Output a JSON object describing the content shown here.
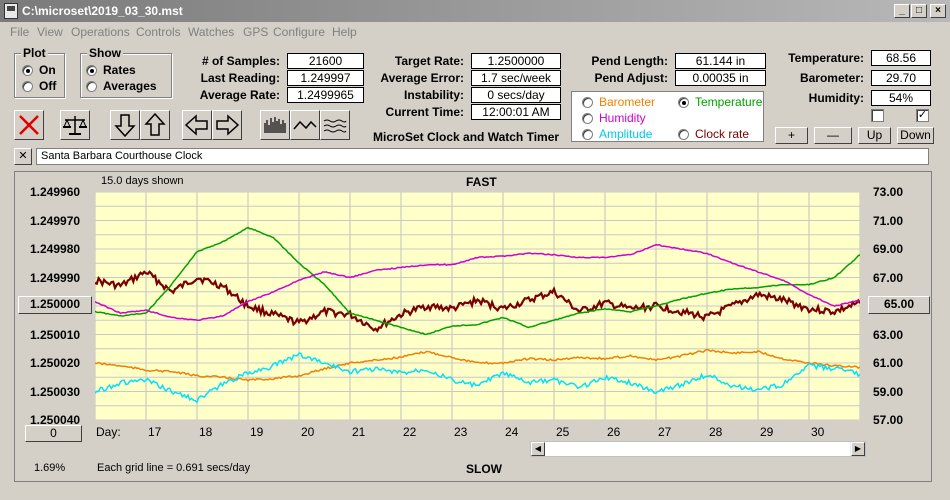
{
  "window": {
    "title": "C:\\microset\\2019_03_30.mst"
  },
  "menu": [
    "File",
    "View",
    "Operations",
    "Controls",
    "Watches",
    "GPS",
    "Configure",
    "Help"
  ],
  "plot": {
    "label": "Plot",
    "on": "On",
    "off": "Off",
    "selected": "On"
  },
  "show": {
    "label": "Show",
    "rates": "Rates",
    "averages": "Averages",
    "selected": "Rates"
  },
  "stats": {
    "samples_label": "# of Samples:",
    "samples": "21600",
    "last_label": "Last Reading:",
    "last": "1.249997",
    "avg_rate_label": "Average Rate:",
    "avg_rate": "1.2499965"
  },
  "timer": {
    "target_label": "Target Rate:",
    "target": "1.2500000",
    "avg_err_label": "Average Error:",
    "avg_err": "1.7 sec/week",
    "instab_label": "Instability:",
    "instab": "0 secs/day",
    "time_label": "Current Time:",
    "time": "12:00:01 AM",
    "caption": "MicroSet Clock and Watch Timer"
  },
  "pend": {
    "length_label": "Pend Length:",
    "length": "61.144 in",
    "adjust_label": "Pend Adjust:",
    "adjust": "0.00035 in"
  },
  "sensor_select": {
    "barometer": "Barometer",
    "temperature": "Temperature",
    "humidity": "Humidity",
    "amplitude": "Amplitude",
    "clock_rate": "Clock rate",
    "selected": "Temperature"
  },
  "env": {
    "temp_label": "Temperature:",
    "temp": "68.56",
    "baro_label": "Barometer:",
    "baro": "29.70",
    "hum_label": "Humidity:",
    "hum": "54%"
  },
  "env_buttons": {
    "plus": "+",
    "minus": "—",
    "up": "Up",
    "down": "Down"
  },
  "clock_name": "Santa Barbara Courthouse Clock",
  "chart_data": {
    "type": "line",
    "days_shown": "15.0 days shown",
    "top_label": "FAST",
    "bottom_label": "SLOW",
    "grid_note": "Each grid line = 0.691 secs/day",
    "left_ticks": [
      "1.249960",
      "1.249970",
      "1.249980",
      "1.249990",
      "1.250000",
      "1.250010",
      "1.250020",
      "1.250030",
      "1.250040"
    ],
    "center_value": "1.250000",
    "right_ticks": [
      "73.00",
      "71.00",
      "69.00",
      "67.00",
      "65.00",
      "63.00",
      "61.00",
      "59.00",
      "57.00"
    ],
    "right_center": "65.00",
    "x_label": "Day:",
    "x_ticks": [
      "17",
      "18",
      "19",
      "20",
      "21",
      "22",
      "23",
      "24",
      "25",
      "26",
      "27",
      "28",
      "29",
      "30"
    ],
    "x_range": [
      16,
      31
    ],
    "left_range": [
      1.24996,
      1.25004
    ],
    "right_range": [
      57,
      73
    ],
    "offset_button": "0",
    "percent": "1.69%",
    "series": [
      {
        "name": "Clock rate",
        "color": "#7a0000",
        "axis": "left",
        "x": [
          16,
          16.5,
          17,
          17.5,
          18,
          18.5,
          19,
          19.5,
          20,
          20.5,
          21,
          21.5,
          22,
          22.5,
          23,
          23.5,
          24,
          24.5,
          25,
          25.5,
          26,
          26.5,
          27,
          27.5,
          28,
          28.5,
          29,
          29.5,
          30,
          30.5,
          31
        ],
        "y": [
          1.249991,
          1.249993,
          1.249988,
          1.249995,
          1.24999,
          1.249993,
          1.25,
          1.250003,
          1.250006,
          1.250002,
          1.250003,
          1.250008,
          1.250003,
          1.25,
          1.250001,
          1.249998,
          1.250001,
          1.249998,
          1.249995,
          1.250002,
          1.249999,
          1.250001,
          1.25,
          1.250002,
          1.250004,
          1.25,
          1.249996,
          1.249998,
          1.250001,
          1.250002,
          1.249999
        ]
      },
      {
        "name": "Temperature",
        "color": "#00a000",
        "axis": "right",
        "x": [
          16,
          16.5,
          17,
          17.5,
          18,
          18.5,
          19,
          19.5,
          20,
          20.5,
          21,
          21.5,
          22,
          22.5,
          23,
          23.5,
          24,
          24.5,
          25,
          25.5,
          26,
          26.5,
          27,
          27.5,
          28,
          28.5,
          29,
          29.5,
          30,
          30.5,
          31
        ],
        "y": [
          64.6,
          64.3,
          64.5,
          66.5,
          68.8,
          69.5,
          70.5,
          69.8,
          68.0,
          66.5,
          64.5,
          64.0,
          63.5,
          63.0,
          63.6,
          63.7,
          64.2,
          63.5,
          64.0,
          64.5,
          64.8,
          64.6,
          65.0,
          65.5,
          65.9,
          66.2,
          66.3,
          66.5,
          66.5,
          67.0,
          68.6
        ]
      },
      {
        "name": "Humidity",
        "color": "#d000d0",
        "axis": "right",
        "x": [
          16,
          16.5,
          17,
          17.5,
          18,
          18.5,
          19,
          19.5,
          20,
          20.5,
          21,
          21.5,
          22,
          22.5,
          23,
          23.5,
          24,
          24.5,
          25,
          25.5,
          26,
          26.5,
          27,
          27.5,
          28,
          28.5,
          29,
          29.5,
          30,
          30.5,
          31
        ],
        "y": [
          65.3,
          64.5,
          64.7,
          64.2,
          64.0,
          64.3,
          65.3,
          66.0,
          66.8,
          67.4,
          67.0,
          67.5,
          67.7,
          67.9,
          67.9,
          68.4,
          68.5,
          68.7,
          68.6,
          68.4,
          68.4,
          68.6,
          69.3,
          69.0,
          68.7,
          68.0,
          67.4,
          66.8,
          65.8,
          65.0,
          65.4
        ]
      },
      {
        "name": "Barometer",
        "color": "#f08000",
        "axis": "right",
        "x": [
          16,
          16.5,
          17,
          17.5,
          18,
          18.5,
          19,
          19.5,
          20,
          20.5,
          21,
          21.5,
          22,
          22.5,
          23,
          23.5,
          24,
          24.5,
          25,
          25.5,
          26,
          26.5,
          27,
          27.5,
          28,
          28.5,
          29,
          29.5,
          30,
          30.5,
          31
        ],
        "y": [
          61.0,
          60.8,
          60.5,
          60.4,
          60.1,
          60.0,
          59.8,
          59.9,
          60.1,
          60.6,
          61.0,
          61.2,
          61.4,
          61.8,
          61.4,
          61.0,
          61.0,
          61.3,
          61.2,
          61.4,
          61.3,
          61.5,
          61.2,
          61.5,
          61.9,
          61.7,
          61.8,
          61.3,
          61.0,
          60.8,
          60.7
        ]
      },
      {
        "name": "Amplitude",
        "color": "#00e0ff",
        "axis": "right",
        "x": [
          16,
          16.5,
          17,
          17.5,
          18,
          18.5,
          19,
          19.5,
          20,
          20.5,
          21,
          21.5,
          22,
          22.5,
          23,
          23.5,
          24,
          24.5,
          25,
          25.5,
          26,
          26.5,
          27,
          27.5,
          28,
          28.5,
          29,
          29.5,
          30,
          30.5,
          31
        ],
        "y": [
          59.0,
          59.6,
          59.8,
          59.0,
          58.4,
          59.5,
          60.3,
          60.8,
          61.6,
          61.0,
          60.4,
          60.6,
          60.3,
          60.6,
          59.8,
          59.4,
          60.3,
          59.6,
          59.8,
          59.3,
          60.0,
          59.6,
          59.0,
          59.5,
          60.2,
          59.4,
          59.1,
          59.5,
          60.8,
          60.6,
          60.2
        ]
      }
    ]
  }
}
